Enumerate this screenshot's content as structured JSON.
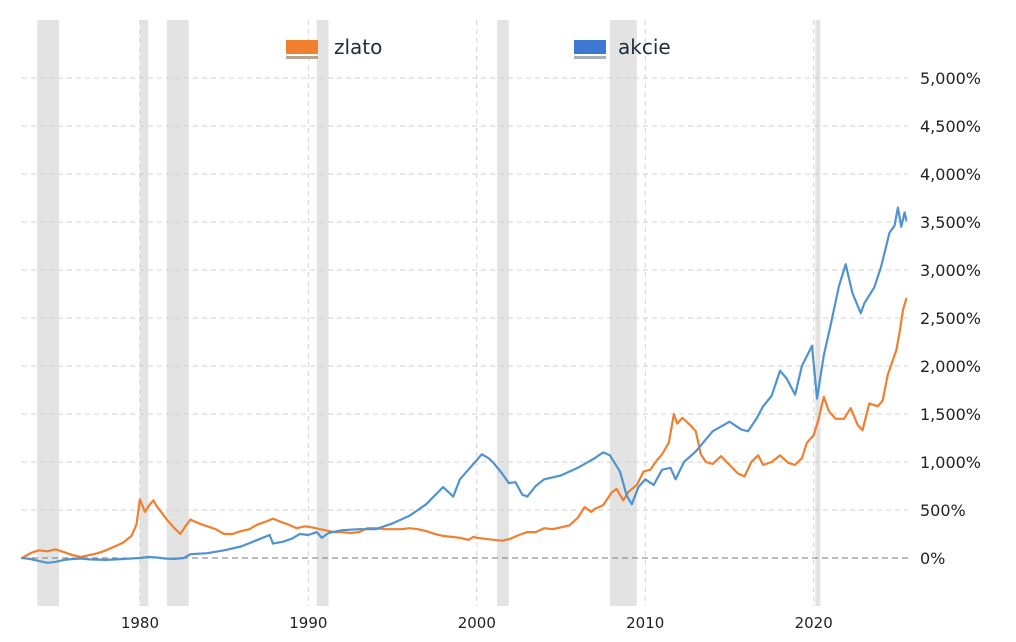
{
  "chart_data": {
    "type": "line",
    "title": "",
    "xlabel": "",
    "ylabel": "",
    "x_range": [
      1973.0,
      2025.6
    ],
    "y_range": [
      -500,
      5500
    ],
    "x_ticks": [
      1980,
      1990,
      2000,
      2010,
      2020
    ],
    "x_tick_labels": [
      "1980",
      "1990",
      "2000",
      "2010",
      "2020"
    ],
    "y_ticks": [
      0,
      500,
      1000,
      1500,
      2000,
      2500,
      3000,
      3500,
      4000,
      4500,
      5000
    ],
    "y_tick_labels": [
      "0%",
      "500%",
      "1,000%",
      "1,500%",
      "2,000%",
      "2,500%",
      "3,000%",
      "3,500%",
      "4,000%",
      "4,500%",
      "5,000%"
    ],
    "y_axis_position": "right",
    "grid": true,
    "zero_line_dashed": true,
    "legend_position": "top",
    "recession_periods": [
      [
        1973.9,
        1975.2
      ],
      [
        1980.0,
        1980.5
      ],
      [
        1981.6,
        1982.9
      ],
      [
        1990.5,
        1991.2
      ],
      [
        2001.2,
        2001.9
      ],
      [
        2007.9,
        2009.5
      ],
      [
        2020.1,
        2020.4
      ]
    ],
    "series": [
      {
        "name": "zlato",
        "color": "#f07f2f",
        "points": [
          [
            1973.0,
            0
          ],
          [
            1973.5,
            50
          ],
          [
            1974.0,
            80
          ],
          [
            1974.5,
            70
          ],
          [
            1975.0,
            90
          ],
          [
            1975.5,
            60
          ],
          [
            1976.0,
            30
          ],
          [
            1976.5,
            10
          ],
          [
            1977.0,
            30
          ],
          [
            1977.5,
            50
          ],
          [
            1978.0,
            80
          ],
          [
            1978.5,
            120
          ],
          [
            1979.0,
            160
          ],
          [
            1979.5,
            230
          ],
          [
            1979.8,
            350
          ],
          [
            1980.0,
            610
          ],
          [
            1980.3,
            480
          ],
          [
            1980.6,
            560
          ],
          [
            1980.8,
            600
          ],
          [
            1981.0,
            540
          ],
          [
            1981.3,
            470
          ],
          [
            1981.6,
            400
          ],
          [
            1982.0,
            320
          ],
          [
            1982.4,
            250
          ],
          [
            1982.7,
            330
          ],
          [
            1983.0,
            400
          ],
          [
            1983.5,
            360
          ],
          [
            1984.0,
            330
          ],
          [
            1984.5,
            300
          ],
          [
            1985.0,
            250
          ],
          [
            1985.5,
            250
          ],
          [
            1986.0,
            280
          ],
          [
            1986.5,
            300
          ],
          [
            1987.0,
            350
          ],
          [
            1987.5,
            380
          ],
          [
            1987.9,
            410
          ],
          [
            1988.3,
            380
          ],
          [
            1988.8,
            350
          ],
          [
            1989.3,
            310
          ],
          [
            1989.8,
            330
          ],
          [
            1990.2,
            320
          ],
          [
            1990.7,
            300
          ],
          [
            1991.0,
            290
          ],
          [
            1991.5,
            270
          ],
          [
            1992.0,
            270
          ],
          [
            1992.5,
            260
          ],
          [
            1993.0,
            270
          ],
          [
            1993.5,
            310
          ],
          [
            1994.0,
            310
          ],
          [
            1994.5,
            300
          ],
          [
            1995.0,
            300
          ],
          [
            1995.5,
            300
          ],
          [
            1996.0,
            310
          ],
          [
            1996.5,
            300
          ],
          [
            1997.0,
            280
          ],
          [
            1997.5,
            250
          ],
          [
            1998.0,
            230
          ],
          [
            1998.5,
            220
          ],
          [
            1999.0,
            210
          ],
          [
            1999.5,
            190
          ],
          [
            1999.8,
            220
          ],
          [
            2000.0,
            210
          ],
          [
            2000.5,
            200
          ],
          [
            2001.0,
            190
          ],
          [
            2001.5,
            180
          ],
          [
            2002.0,
            200
          ],
          [
            2002.5,
            240
          ],
          [
            2003.0,
            270
          ],
          [
            2003.5,
            270
          ],
          [
            2004.0,
            310
          ],
          [
            2004.5,
            300
          ],
          [
            2005.0,
            320
          ],
          [
            2005.5,
            340
          ],
          [
            2006.0,
            420
          ],
          [
            2006.4,
            530
          ],
          [
            2006.8,
            480
          ],
          [
            2007.0,
            510
          ],
          [
            2007.5,
            550
          ],
          [
            2008.0,
            680
          ],
          [
            2008.3,
            720
          ],
          [
            2008.7,
            600
          ],
          [
            2009.0,
            690
          ],
          [
            2009.5,
            760
          ],
          [
            2009.9,
            900
          ],
          [
            2010.3,
            920
          ],
          [
            2010.7,
            1020
          ],
          [
            2011.0,
            1080
          ],
          [
            2011.4,
            1200
          ],
          [
            2011.7,
            1500
          ],
          [
            2011.9,
            1400
          ],
          [
            2012.2,
            1460
          ],
          [
            2012.7,
            1380
          ],
          [
            2013.0,
            1320
          ],
          [
            2013.3,
            1080
          ],
          [
            2013.6,
            1000
          ],
          [
            2014.0,
            980
          ],
          [
            2014.5,
            1060
          ],
          [
            2015.0,
            970
          ],
          [
            2015.5,
            880
          ],
          [
            2015.9,
            850
          ],
          [
            2016.3,
            1000
          ],
          [
            2016.7,
            1070
          ],
          [
            2017.0,
            970
          ],
          [
            2017.5,
            1000
          ],
          [
            2018.0,
            1070
          ],
          [
            2018.5,
            990
          ],
          [
            2018.9,
            970
          ],
          [
            2019.3,
            1040
          ],
          [
            2019.6,
            1200
          ],
          [
            2020.0,
            1280
          ],
          [
            2020.3,
            1450
          ],
          [
            2020.6,
            1680
          ],
          [
            2020.9,
            1530
          ],
          [
            2021.3,
            1450
          ],
          [
            2021.8,
            1450
          ],
          [
            2022.2,
            1560
          ],
          [
            2022.6,
            1390
          ],
          [
            2022.9,
            1330
          ],
          [
            2023.3,
            1610
          ],
          [
            2023.8,
            1580
          ],
          [
            2024.1,
            1640
          ],
          [
            2024.4,
            1910
          ],
          [
            2024.7,
            2060
          ],
          [
            2024.9,
            2160
          ],
          [
            2025.1,
            2350
          ],
          [
            2025.3,
            2580
          ],
          [
            2025.5,
            2700
          ]
        ]
      },
      {
        "name": "akcie",
        "color": "#4f93cf",
        "points": [
          [
            1973.0,
            0
          ],
          [
            1973.5,
            -10
          ],
          [
            1974.0,
            -30
          ],
          [
            1974.5,
            -50
          ],
          [
            1975.0,
            -40
          ],
          [
            1975.5,
            -20
          ],
          [
            1976.0,
            -10
          ],
          [
            1976.5,
            -5
          ],
          [
            1977.0,
            -15
          ],
          [
            1978.0,
            -20
          ],
          [
            1979.0,
            -10
          ],
          [
            1980.0,
            0
          ],
          [
            1980.5,
            10
          ],
          [
            1981.0,
            5
          ],
          [
            1981.5,
            -5
          ],
          [
            1982.0,
            -10
          ],
          [
            1982.6,
            0
          ],
          [
            1983.0,
            40
          ],
          [
            1984.0,
            50
          ],
          [
            1985.0,
            80
          ],
          [
            1986.0,
            120
          ],
          [
            1987.0,
            190
          ],
          [
            1987.7,
            240
          ],
          [
            1987.9,
            150
          ],
          [
            1988.5,
            170
          ],
          [
            1989.0,
            200
          ],
          [
            1989.5,
            250
          ],
          [
            1990.0,
            240
          ],
          [
            1990.5,
            270
          ],
          [
            1990.8,
            210
          ],
          [
            1991.2,
            260
          ],
          [
            1992.0,
            290
          ],
          [
            1993.0,
            300
          ],
          [
            1994.0,
            300
          ],
          [
            1995.0,
            360
          ],
          [
            1996.0,
            440
          ],
          [
            1997.0,
            560
          ],
          [
            1998.0,
            740
          ],
          [
            1998.6,
            640
          ],
          [
            1999.0,
            820
          ],
          [
            1999.5,
            920
          ],
          [
            2000.0,
            1020
          ],
          [
            2000.3,
            1080
          ],
          [
            2000.7,
            1040
          ],
          [
            2001.0,
            990
          ],
          [
            2001.5,
            880
          ],
          [
            2001.9,
            780
          ],
          [
            2002.3,
            790
          ],
          [
            2002.7,
            660
          ],
          [
            2003.0,
            640
          ],
          [
            2003.5,
            750
          ],
          [
            2004.0,
            820
          ],
          [
            2005.0,
            860
          ],
          [
            2006.0,
            940
          ],
          [
            2007.0,
            1040
          ],
          [
            2007.5,
            1100
          ],
          [
            2007.9,
            1070
          ],
          [
            2008.5,
            900
          ],
          [
            2008.9,
            650
          ],
          [
            2009.2,
            560
          ],
          [
            2009.6,
            740
          ],
          [
            2010.0,
            820
          ],
          [
            2010.5,
            760
          ],
          [
            2011.0,
            920
          ],
          [
            2011.5,
            940
          ],
          [
            2011.8,
            820
          ],
          [
            2012.3,
            1000
          ],
          [
            2013.0,
            1110
          ],
          [
            2014.0,
            1320
          ],
          [
            2015.0,
            1420
          ],
          [
            2015.7,
            1340
          ],
          [
            2016.1,
            1320
          ],
          [
            2016.6,
            1450
          ],
          [
            2017.0,
            1580
          ],
          [
            2017.5,
            1690
          ],
          [
            2018.0,
            1950
          ],
          [
            2018.4,
            1870
          ],
          [
            2018.9,
            1700
          ],
          [
            2019.3,
            2000
          ],
          [
            2019.9,
            2210
          ],
          [
            2020.2,
            1660
          ],
          [
            2020.6,
            2110
          ],
          [
            2021.0,
            2420
          ],
          [
            2021.5,
            2830
          ],
          [
            2021.9,
            3060
          ],
          [
            2022.3,
            2760
          ],
          [
            2022.8,
            2550
          ],
          [
            2023.0,
            2650
          ],
          [
            2023.6,
            2820
          ],
          [
            2024.0,
            3030
          ],
          [
            2024.5,
            3390
          ],
          [
            2024.8,
            3460
          ],
          [
            2025.0,
            3650
          ],
          [
            2025.2,
            3450
          ],
          [
            2025.4,
            3600
          ],
          [
            2025.5,
            3520
          ]
        ]
      }
    ]
  }
}
